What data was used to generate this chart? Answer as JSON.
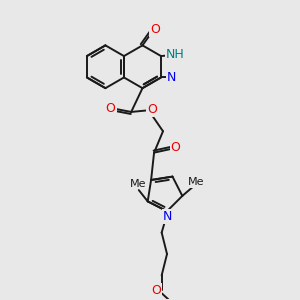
{
  "bg_color": "#e8e8e8",
  "bond_color": "#1a1a1a",
  "N_color": "#0000ee",
  "O_color": "#ee0000",
  "NH_color": "#008080",
  "lw": 1.4,
  "fs": 8.5,
  "figsize": [
    3.0,
    3.0
  ],
  "dpi": 100,
  "xlim": [
    0,
    10
  ],
  "ylim": [
    0,
    10
  ]
}
